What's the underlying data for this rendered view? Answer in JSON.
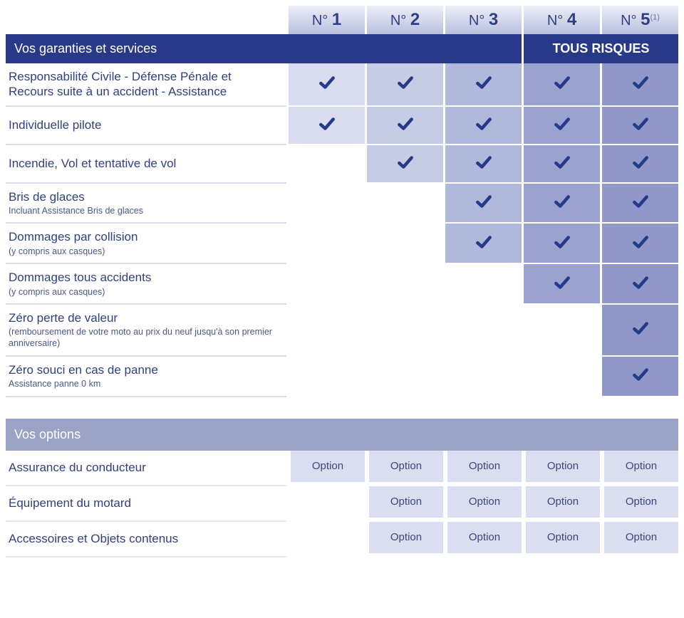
{
  "colors": {
    "brand_dark": "#283989",
    "text_main": "#2f3f82",
    "option_header_bg": "#9aa2c6",
    "option_cell_bg": "#dadef0",
    "row_divider": "#d9dbe6",
    "plan_shades": [
      "#d8dcee",
      "#c6cce6",
      "#b0b8dc",
      "#9aa3cf",
      "#8f98c8"
    ],
    "plan_header_gradient_top": "#eceef7",
    "plan_header_gradient_bottom": "#b9c0df"
  },
  "plans": [
    {
      "prefix": "N°",
      "num": "1",
      "sup": ""
    },
    {
      "prefix": "N°",
      "num": "2",
      "sup": ""
    },
    {
      "prefix": "N°",
      "num": "3",
      "sup": ""
    },
    {
      "prefix": "N°",
      "num": "4",
      "sup": ""
    },
    {
      "prefix": "N°",
      "num": "5",
      "sup": "(1)"
    }
  ],
  "guarantees": {
    "header": "Vos garanties et services",
    "tous_risques": "TOUS RISQUES",
    "rows": [
      {
        "label": "Responsabilité Civile - Défense Pénale et Recours suite à un accident - Assistance",
        "sub": "",
        "checks": [
          true,
          true,
          true,
          true,
          true
        ]
      },
      {
        "label": "Individuelle pilote",
        "sub": "",
        "checks": [
          true,
          true,
          true,
          true,
          true
        ]
      },
      {
        "label": "Incendie, Vol et tentative de vol",
        "sub": "",
        "checks": [
          false,
          true,
          true,
          true,
          true
        ]
      },
      {
        "label": "Bris de glaces",
        "sub": "Incluant Assistance Bris de glaces",
        "checks": [
          false,
          false,
          true,
          true,
          true
        ]
      },
      {
        "label": "Dommages par collision",
        "sub": "(y compris aux casques)",
        "checks": [
          false,
          false,
          true,
          true,
          true
        ]
      },
      {
        "label": "Dommages tous accidents",
        "sub": "(y compris aux casques)",
        "checks": [
          false,
          false,
          false,
          true,
          true
        ]
      },
      {
        "label": "Zéro perte de valeur",
        "sub": "(remboursement de votre moto au prix du neuf jusqu'à son premier anniversaire)",
        "checks": [
          false,
          false,
          false,
          false,
          true
        ]
      },
      {
        "label": "Zéro souci en cas de panne",
        "sub": "Assistance panne 0 km",
        "checks": [
          false,
          false,
          false,
          false,
          true
        ]
      }
    ]
  },
  "options": {
    "header": "Vos options",
    "word": "Option",
    "rows": [
      {
        "label": "Assurance du conducteur",
        "avail": [
          true,
          true,
          true,
          true,
          true
        ]
      },
      {
        "label": "Équipement du motard",
        "avail": [
          false,
          true,
          true,
          true,
          true
        ]
      },
      {
        "label": "Accessoires et Objets contenus",
        "avail": [
          false,
          true,
          true,
          true,
          true
        ]
      }
    ]
  }
}
